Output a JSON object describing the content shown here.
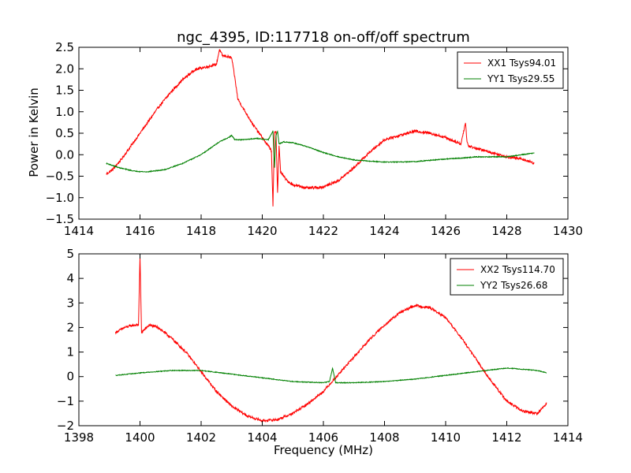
{
  "chart_data": [
    {
      "type": "line",
      "title": "ngc_4395, ID:117718 on-off/off spectrum",
      "xlabel": "",
      "ylabel": "Power in Kelvin",
      "xlim": [
        1414,
        1430
      ],
      "ylim": [
        -1.5,
        2.5
      ],
      "xticks": [
        1414,
        1416,
        1418,
        1420,
        1422,
        1424,
        1426,
        1428,
        1430
      ],
      "xtick_labels": [
        "1414",
        "1416",
        "1418",
        "1420",
        "1422",
        "1424",
        "1426",
        "1428",
        "1430"
      ],
      "yticks": [
        -1.5,
        -1.0,
        -0.5,
        0.0,
        0.5,
        1.0,
        1.5,
        2.0,
        2.5
      ],
      "ytick_labels": [
        "−1.5",
        "−1.0",
        "−0.5",
        "0.0",
        "0.5",
        "1.0",
        "1.5",
        "2.0",
        "2.5"
      ],
      "legend_position": "top-right",
      "grid": false,
      "series": [
        {
          "name": "XX1 Tsys94.01",
          "color": "#ff0000",
          "noise": 0.03,
          "x": [
            1414.9,
            1415.1,
            1415.4,
            1415.8,
            1416.2,
            1416.6,
            1417.0,
            1417.4,
            1417.8,
            1418.2,
            1418.5,
            1418.6,
            1418.7,
            1418.8,
            1419.0,
            1419.1,
            1419.2,
            1419.4,
            1419.7,
            1420.0,
            1420.2,
            1420.3,
            1420.35,
            1420.4,
            1420.45,
            1420.5,
            1420.55,
            1420.6,
            1420.7,
            1420.8,
            1421.0,
            1421.5,
            1422.0,
            1422.5,
            1423.0,
            1423.5,
            1424.0,
            1424.5,
            1425.0,
            1425.5,
            1426.0,
            1426.5,
            1426.65,
            1426.7,
            1426.75,
            1427.0,
            1427.5,
            1428.0,
            1428.5,
            1428.9
          ],
          "y": [
            -0.45,
            -0.35,
            -0.1,
            0.3,
            0.7,
            1.1,
            1.45,
            1.75,
            1.98,
            2.05,
            2.1,
            2.45,
            2.3,
            2.3,
            2.25,
            1.8,
            1.3,
            1.05,
            0.7,
            0.4,
            0.2,
            0.1,
            -1.2,
            0.5,
            0.55,
            -0.9,
            0.2,
            -0.4,
            -0.5,
            -0.6,
            -0.7,
            -0.78,
            -0.75,
            -0.6,
            -0.3,
            0.05,
            0.35,
            0.45,
            0.55,
            0.5,
            0.4,
            0.25,
            0.75,
            0.3,
            0.2,
            0.15,
            0.05,
            -0.05,
            -0.1,
            -0.2
          ]
        },
        {
          "name": "YY1 Tsys29.55",
          "color": "#008000",
          "noise": 0.01,
          "x": [
            1414.9,
            1415.3,
            1415.8,
            1416.2,
            1416.8,
            1417.4,
            1418.0,
            1418.6,
            1418.9,
            1419.0,
            1419.1,
            1419.4,
            1419.8,
            1420.2,
            1420.35,
            1420.4,
            1420.45,
            1420.5,
            1420.55,
            1420.7,
            1421.0,
            1421.5,
            1422.0,
            1422.5,
            1423.0,
            1423.5,
            1424.0,
            1424.5,
            1425.0,
            1425.5,
            1426.0,
            1426.5,
            1427.0,
            1427.5,
            1428.0,
            1428.5,
            1428.9
          ],
          "y": [
            -0.2,
            -0.3,
            -0.38,
            -0.4,
            -0.35,
            -0.2,
            0.0,
            0.3,
            0.4,
            0.45,
            0.35,
            0.35,
            0.38,
            0.35,
            0.55,
            -0.3,
            0.45,
            0.55,
            0.25,
            0.3,
            0.28,
            0.18,
            0.05,
            -0.05,
            -0.12,
            -0.15,
            -0.17,
            -0.17,
            -0.16,
            -0.13,
            -0.1,
            -0.08,
            -0.05,
            -0.05,
            -0.05,
            0.0,
            0.04
          ]
        }
      ]
    },
    {
      "type": "line",
      "title": "",
      "xlabel": "Frequency (MHz)",
      "ylabel": "",
      "xlim": [
        1398,
        1414
      ],
      "ylim": [
        -2,
        5
      ],
      "xticks": [
        1398,
        1400,
        1402,
        1404,
        1406,
        1408,
        1410,
        1412,
        1414
      ],
      "xtick_labels": [
        "1398",
        "1400",
        "1402",
        "1404",
        "1406",
        "1408",
        "1410",
        "1412",
        "1414"
      ],
      "yticks": [
        -2,
        -1,
        0,
        1,
        2,
        3,
        4,
        5
      ],
      "ytick_labels": [
        "−2",
        "−1",
        "0",
        "1",
        "2",
        "3",
        "4",
        "5"
      ],
      "legend_position": "top-right",
      "grid": false,
      "series": [
        {
          "name": "XX2 Tsys114.70",
          "color": "#ff0000",
          "noise": 0.05,
          "x": [
            1399.2,
            1399.5,
            1399.8,
            1399.95,
            1400.0,
            1400.05,
            1400.3,
            1400.6,
            1401.0,
            1401.5,
            1402.0,
            1402.5,
            1403.0,
            1403.5,
            1404.0,
            1404.5,
            1405.0,
            1405.5,
            1406.0,
            1406.5,
            1407.0,
            1407.5,
            1408.0,
            1408.5,
            1409.0,
            1409.5,
            1410.0,
            1410.5,
            1411.0,
            1411.5,
            1412.0,
            1412.5,
            1413.0,
            1413.3
          ],
          "y": [
            1.8,
            2.0,
            2.1,
            2.1,
            4.9,
            1.8,
            2.1,
            2.0,
            1.6,
            1.0,
            0.2,
            -0.6,
            -1.2,
            -1.6,
            -1.8,
            -1.75,
            -1.5,
            -1.1,
            -0.6,
            0.1,
            0.8,
            1.5,
            2.1,
            2.6,
            2.9,
            2.8,
            2.4,
            1.6,
            0.7,
            -0.2,
            -1.0,
            -1.4,
            -1.5,
            -1.1
          ]
        },
        {
          "name": "YY2 Tsys26.68",
          "color": "#008000",
          "noise": 0.015,
          "x": [
            1399.2,
            1400.0,
            1401.0,
            1402.0,
            1403.0,
            1404.0,
            1405.0,
            1406.0,
            1406.2,
            1406.3,
            1406.4,
            1407.0,
            1408.0,
            1409.0,
            1410.0,
            1411.0,
            1412.0,
            1413.0,
            1413.3
          ],
          "y": [
            0.05,
            0.15,
            0.25,
            0.25,
            0.1,
            -0.05,
            -0.2,
            -0.25,
            -0.2,
            0.35,
            -0.25,
            -0.25,
            -0.2,
            -0.1,
            0.05,
            0.2,
            0.35,
            0.25,
            0.15
          ]
        }
      ]
    }
  ]
}
